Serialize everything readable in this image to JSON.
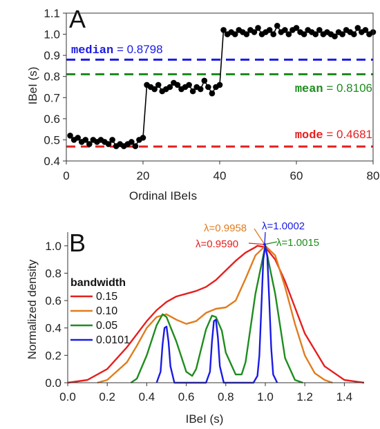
{
  "chart_data": [
    {
      "type": "scatter",
      "panel_label": "A",
      "xlabel": "Ordinal IBeIs",
      "ylabel": "IBeI (s)",
      "xlim": [
        0,
        80
      ],
      "ylim": [
        0.4,
        1.1
      ],
      "xticks": [
        "0",
        "20",
        "40",
        "60",
        "80"
      ],
      "yticks": [
        "0.4",
        "0.5",
        "0.6",
        "0.7",
        "0.8",
        "0.9",
        "1.0",
        "1.1"
      ],
      "x": [
        1,
        2,
        3,
        4,
        5,
        6,
        7,
        8,
        9,
        10,
        11,
        12,
        13,
        14,
        15,
        16,
        17,
        18,
        19,
        20,
        21,
        22,
        23,
        24,
        25,
        26,
        27,
        28,
        29,
        30,
        31,
        32,
        33,
        34,
        35,
        36,
        37,
        38,
        39,
        40,
        41,
        42,
        43,
        44,
        45,
        46,
        47,
        48,
        49,
        50,
        51,
        52,
        53,
        54,
        55,
        56,
        57,
        58,
        59,
        60,
        61,
        62,
        63,
        64,
        65,
        66,
        67,
        68,
        69,
        70,
        71,
        72,
        73,
        74,
        75,
        76,
        77,
        78,
        79,
        80
      ],
      "y": [
        0.52,
        0.5,
        0.51,
        0.49,
        0.5,
        0.48,
        0.5,
        0.49,
        0.5,
        0.49,
        0.48,
        0.5,
        0.47,
        0.48,
        0.47,
        0.48,
        0.49,
        0.47,
        0.5,
        0.51,
        0.76,
        0.75,
        0.74,
        0.76,
        0.73,
        0.74,
        0.75,
        0.77,
        0.76,
        0.74,
        0.75,
        0.76,
        0.73,
        0.75,
        0.74,
        0.78,
        0.75,
        0.72,
        0.75,
        0.76,
        1.02,
        1.0,
        1.01,
        1.0,
        1.02,
        1.01,
        1.0,
        1.02,
        1.01,
        1.03,
        1.0,
        1.01,
        1.02,
        1.0,
        1.04,
        1.01,
        1.02,
        1.0,
        1.02,
        1.03,
        1.01,
        1.0,
        1.02,
        1.01,
        1.0,
        1.02,
        1.0,
        1.01,
        1.0,
        0.99,
        1.01,
        1.0,
        1.02,
        1.01,
        1.0,
        1.03,
        1.01,
        1.02,
        1.0,
        1.01
      ],
      "reference_lines": [
        {
          "key": "median",
          "value": 0.8798,
          "label": "median",
          "text": "= 0.8798",
          "color": "#1a1ae6"
        },
        {
          "key": "mean",
          "value": 0.8106,
          "label": "mean",
          "text": "= 0.8106",
          "color": "#1e8c1e"
        },
        {
          "key": "mode",
          "value": 0.4681,
          "label": "mode",
          "text": "= 0.4681",
          "color": "#e61e1e"
        }
      ],
      "marker_color": "#000000"
    },
    {
      "type": "line",
      "panel_label": "B",
      "xlabel": "IBeI (s)",
      "ylabel": "Normalized density",
      "xlim": [
        0,
        1.5
      ],
      "ylim": [
        0,
        1.1
      ],
      "xticks": [
        "0.0",
        "0.2",
        "0.4",
        "0.6",
        "0.8",
        "1.0",
        "1.2",
        "1.4"
      ],
      "yticks": [
        "0.0",
        "0.2",
        "0.4",
        "0.6",
        "0.8",
        "1.0"
      ],
      "legend_title": "bandwidth",
      "legend_position": "left",
      "series": [
        {
          "name": "0.15",
          "color": "#e61e1e",
          "peak_label": "λ=0.9590",
          "x": [
            0.0,
            0.1,
            0.2,
            0.3,
            0.4,
            0.45,
            0.5,
            0.55,
            0.6,
            0.65,
            0.7,
            0.75,
            0.8,
            0.85,
            0.9,
            0.95,
            0.96,
            1.0,
            1.05,
            1.1,
            1.15,
            1.2,
            1.3,
            1.4,
            1.5
          ],
          "y": [
            0.0,
            0.02,
            0.1,
            0.26,
            0.45,
            0.53,
            0.59,
            0.63,
            0.65,
            0.67,
            0.7,
            0.75,
            0.82,
            0.89,
            0.95,
            0.99,
            1.0,
            0.99,
            0.9,
            0.74,
            0.55,
            0.36,
            0.12,
            0.02,
            0.0
          ]
        },
        {
          "name": "0.10",
          "color": "#e07c1e",
          "peak_label": "λ=0.9958",
          "x": [
            0.15,
            0.2,
            0.3,
            0.35,
            0.4,
            0.45,
            0.5,
            0.55,
            0.6,
            0.65,
            0.7,
            0.75,
            0.8,
            0.85,
            0.9,
            0.95,
            1.0,
            1.05,
            1.1,
            1.15,
            1.2,
            1.25,
            1.3,
            1.34
          ],
          "y": [
            0.0,
            0.02,
            0.15,
            0.27,
            0.4,
            0.48,
            0.5,
            0.46,
            0.43,
            0.45,
            0.51,
            0.54,
            0.55,
            0.6,
            0.76,
            0.93,
            1.0,
            0.93,
            0.7,
            0.43,
            0.2,
            0.07,
            0.02,
            0.0
          ]
        },
        {
          "name": "0.05",
          "color": "#1e8c1e",
          "peak_label": "λ=1.0015",
          "x": [
            0.32,
            0.35,
            0.4,
            0.45,
            0.48,
            0.5,
            0.55,
            0.6,
            0.63,
            0.65,
            0.7,
            0.73,
            0.75,
            0.78,
            0.8,
            0.85,
            0.88,
            0.9,
            0.95,
            1.0,
            1.05,
            1.1,
            1.15,
            1.19
          ],
          "y": [
            0.0,
            0.03,
            0.2,
            0.42,
            0.5,
            0.48,
            0.3,
            0.08,
            0.05,
            0.1,
            0.39,
            0.49,
            0.48,
            0.38,
            0.22,
            0.06,
            0.06,
            0.15,
            0.65,
            1.0,
            0.65,
            0.18,
            0.02,
            0.0
          ]
        },
        {
          "name": "0.0101",
          "color": "#1a1ae6",
          "peak_label": "λ=1.0002",
          "x": [
            0.45,
            0.47,
            0.48,
            0.49,
            0.5,
            0.51,
            0.52,
            0.54,
            0.7,
            0.72,
            0.73,
            0.74,
            0.75,
            0.76,
            0.77,
            0.79,
            0.94,
            0.96,
            0.97,
            0.98,
            0.99,
            1.0,
            1.01,
            1.02,
            1.03,
            1.04,
            1.06
          ],
          "y": [
            0.0,
            0.08,
            0.28,
            0.4,
            0.41,
            0.3,
            0.12,
            0.0,
            0.0,
            0.08,
            0.3,
            0.45,
            0.46,
            0.33,
            0.12,
            0.0,
            0.0,
            0.05,
            0.2,
            0.55,
            0.9,
            1.0,
            0.92,
            0.6,
            0.25,
            0.06,
            0.0
          ]
        }
      ]
    }
  ]
}
